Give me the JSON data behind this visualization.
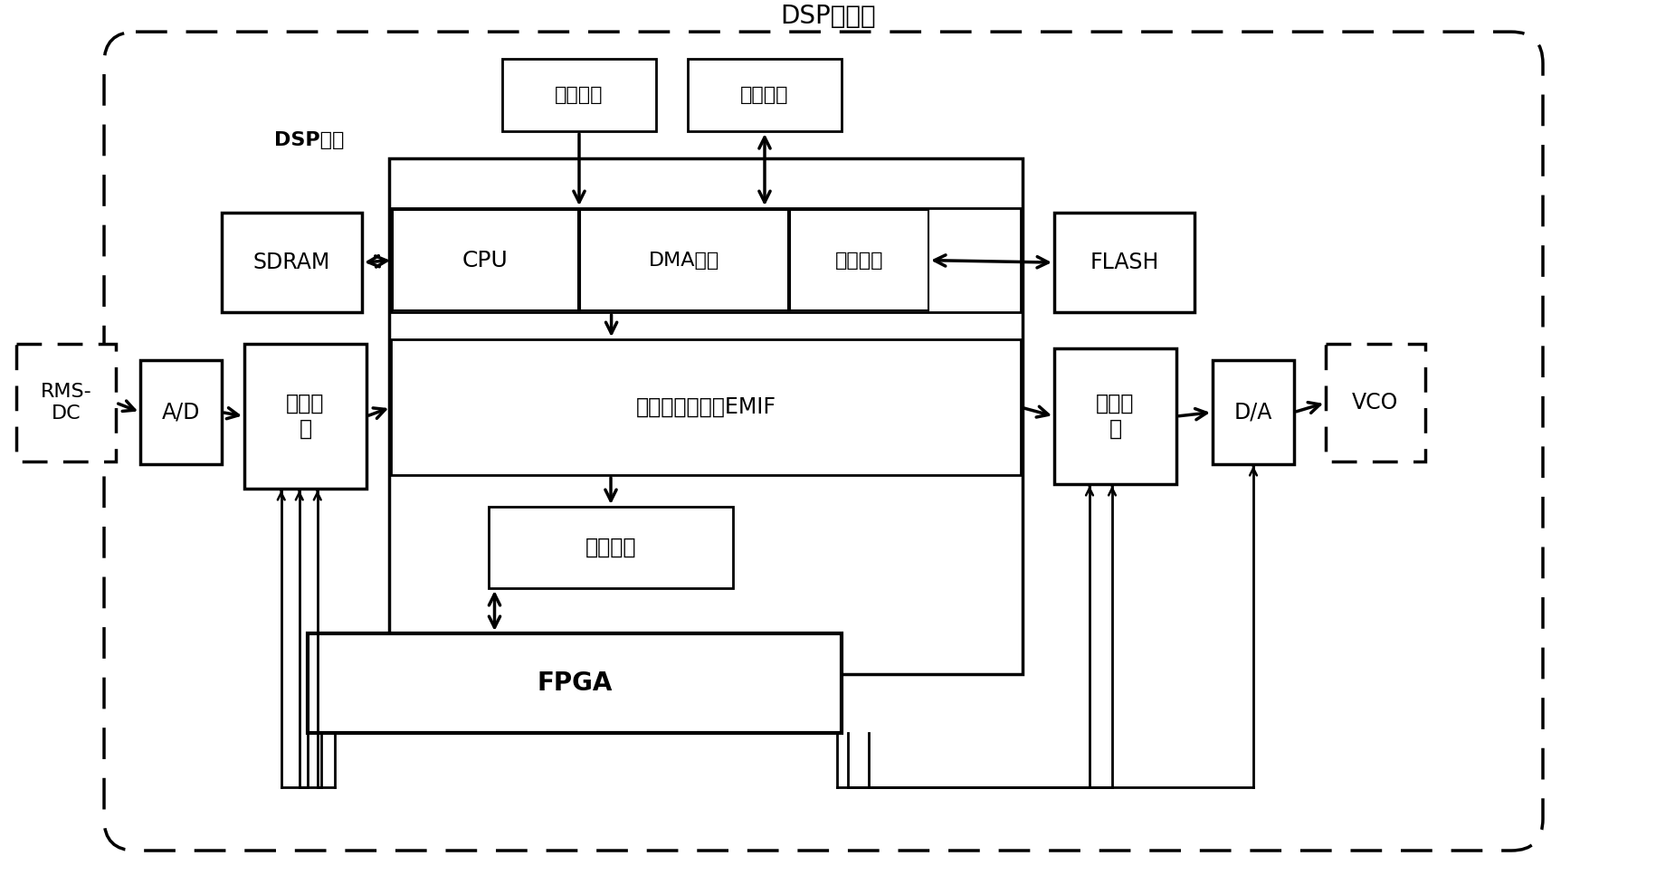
{
  "bg_color": "#ffffff",
  "title": "DSP电路板",
  "dsp_chip_label": "DSP芝片",
  "labels": {
    "rmsdc": "RMS-\nDC",
    "ad": "A/D",
    "buf1": "数据缓\n冲",
    "emif": "外部存储器接口EMIF",
    "cpu": "CPU",
    "dma": "DMA控制",
    "cache": "片内缓存",
    "intr": "中断控制",
    "fpga": "FPGA",
    "sdram": "SDRAM",
    "flash": "FLASH",
    "buf2": "数据缓\n冲",
    "da": "D/A",
    "vco": "VCO",
    "clk": "外部时钟",
    "serial": "串行接口"
  }
}
